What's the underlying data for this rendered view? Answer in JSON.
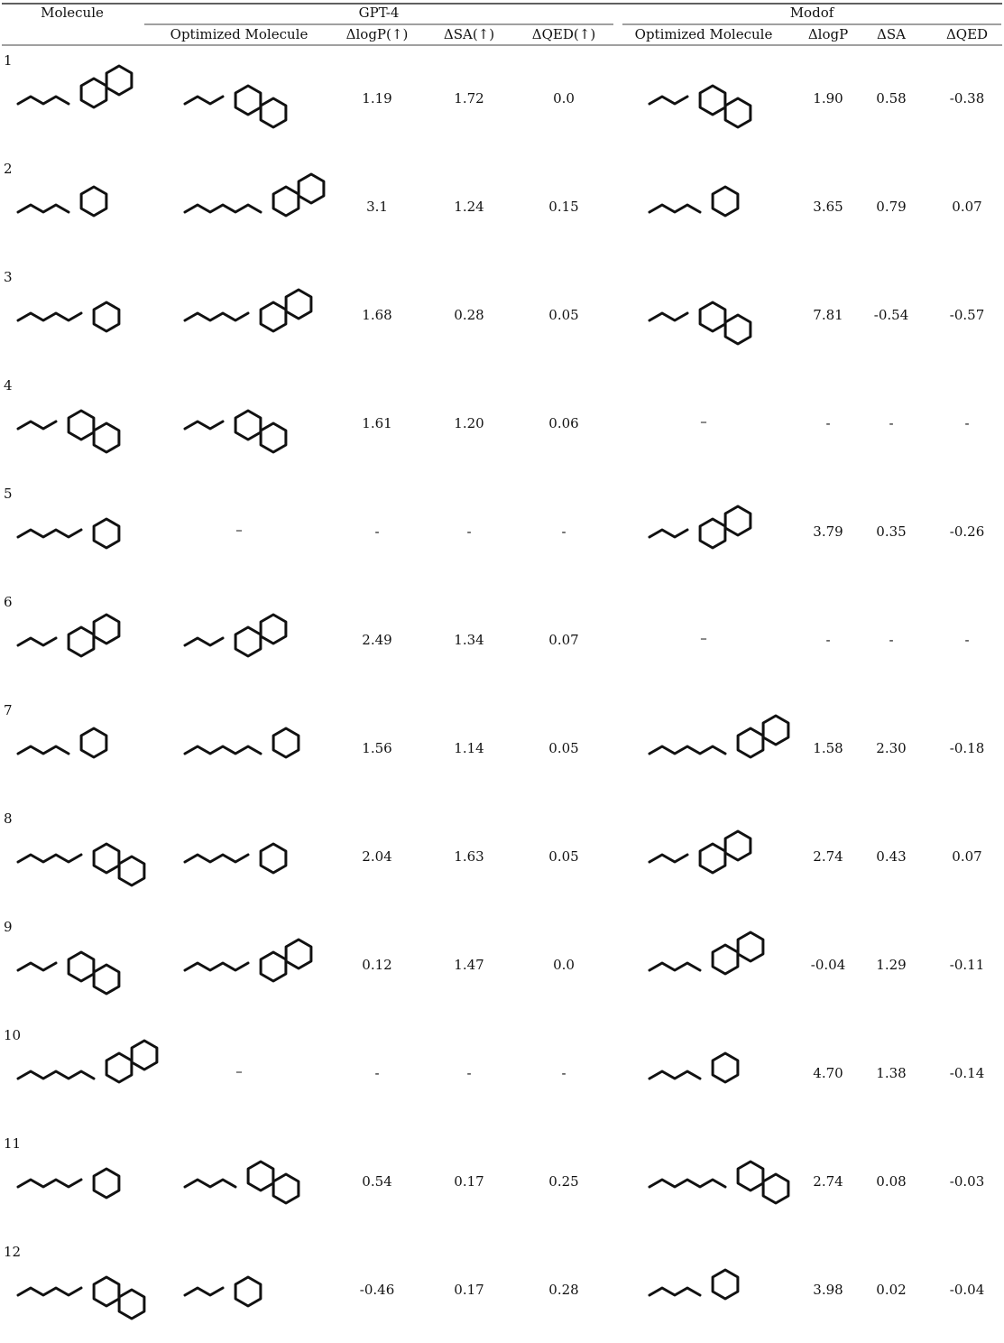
{
  "table": {
    "header": {
      "molecule": "Molecule",
      "groups": [
        "GPT-4",
        "Modof"
      ],
      "columns": [
        "Optimized Molecule",
        "ΔlogP(↑)",
        "ΔSA(↑)",
        "ΔQED(↑)",
        "Optimized Molecule",
        "ΔlogP",
        "ΔSA",
        "ΔQED"
      ]
    },
    "rows": [
      {
        "id": "1",
        "gpt4": {
          "molecule": null,
          "values": [
            "1.19",
            "1.72",
            "0.0"
          ]
        },
        "modof": {
          "molecule": null,
          "values": [
            "1.90",
            "0.58",
            "-0.38"
          ]
        }
      },
      {
        "id": "2",
        "gpt4": {
          "molecule": null,
          "values": [
            "3.1",
            "1.24",
            "0.15"
          ]
        },
        "modof": {
          "molecule": null,
          "values": [
            "3.65",
            "0.79",
            "0.07"
          ]
        }
      },
      {
        "id": "3",
        "gpt4": {
          "molecule": null,
          "values": [
            "1.68",
            "0.28",
            "0.05"
          ]
        },
        "modof": {
          "molecule": null,
          "values": [
            "7.81",
            "-0.54",
            "-0.57"
          ]
        }
      },
      {
        "id": "4",
        "gpt4": {
          "molecule": null,
          "values": [
            "1.61",
            "1.20",
            "0.06"
          ]
        },
        "modof": {
          "molecule": "–",
          "values": [
            "-",
            "-",
            "-"
          ]
        }
      },
      {
        "id": "5",
        "gpt4": {
          "molecule": "–",
          "values": [
            "-",
            "-",
            "-"
          ]
        },
        "modof": {
          "molecule": null,
          "values": [
            "3.79",
            "0.35",
            "-0.26"
          ]
        }
      },
      {
        "id": "6",
        "gpt4": {
          "molecule": null,
          "values": [
            "2.49",
            "1.34",
            "0.07"
          ]
        },
        "modof": {
          "molecule": "–",
          "values": [
            "-",
            "-",
            "-"
          ]
        }
      },
      {
        "id": "7",
        "gpt4": {
          "molecule": null,
          "values": [
            "1.56",
            "1.14",
            "0.05"
          ]
        },
        "modof": {
          "molecule": null,
          "values": [
            "1.58",
            "2.30",
            "-0.18"
          ]
        }
      },
      {
        "id": "8",
        "gpt4": {
          "molecule": null,
          "values": [
            "2.04",
            "1.63",
            "0.05"
          ]
        },
        "modof": {
          "molecule": null,
          "values": [
            "2.74",
            "0.43",
            "0.07"
          ]
        }
      },
      {
        "id": "9",
        "gpt4": {
          "molecule": null,
          "values": [
            "0.12",
            "1.47",
            "0.0"
          ]
        },
        "modof": {
          "molecule": null,
          "values": [
            "-0.04",
            "1.29",
            "-0.11"
          ]
        }
      },
      {
        "id": "10",
        "gpt4": {
          "molecule": "–",
          "values": [
            "-",
            "-",
            "-"
          ]
        },
        "modof": {
          "molecule": null,
          "values": [
            "4.70",
            "1.38",
            "-0.14"
          ]
        }
      },
      {
        "id": "11",
        "gpt4": {
          "molecule": null,
          "values": [
            "0.54",
            "0.17",
            "0.25"
          ]
        },
        "modof": {
          "molecule": null,
          "values": [
            "2.74",
            "0.08",
            "-0.03"
          ]
        }
      },
      {
        "id": "12",
        "gpt4": {
          "molecule": null,
          "values": [
            "-0.46",
            "0.17",
            "0.28"
          ]
        },
        "modof": {
          "molecule": null,
          "values": [
            "3.98",
            "0.02",
            "-0.04"
          ]
        }
      }
    ]
  }
}
